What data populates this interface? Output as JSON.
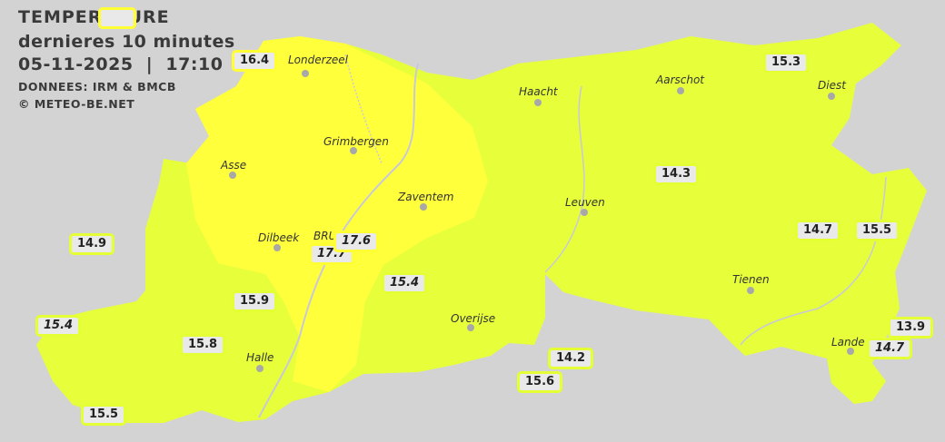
{
  "header": {
    "title": "TEMPERATURE",
    "subtitle": "dernieres 10 minutes",
    "datetime": "05-11-2025  |  17:10",
    "source": "DONNEES: IRM & BMCB",
    "copyright": "© METEO-BE.NET"
  },
  "colors": {
    "background": "#d3d3d3",
    "warm_zone": "#ffff3c",
    "mild_zone": "#e6ff3a",
    "badge_bg": "#e9e9e9"
  },
  "cities": [
    {
      "name": "Londerzeel"
    },
    {
      "name": "Haacht"
    },
    {
      "name": "Aarschot"
    },
    {
      "name": "Diest"
    },
    {
      "name": "Grimbergen"
    },
    {
      "name": "Asse"
    },
    {
      "name": "Zaventem"
    },
    {
      "name": "Leuven"
    },
    {
      "name": "Dilbeek"
    },
    {
      "name": "BRU"
    },
    {
      "name": "Tienen"
    },
    {
      "name": "Overijse"
    },
    {
      "name": "Halle"
    },
    {
      "name": "Lande"
    }
  ],
  "stations": [
    {
      "value": "16.4"
    },
    {
      "value": "15.3"
    },
    {
      "value": "14.3"
    },
    {
      "value": "14.9"
    },
    {
      "value": "17.7"
    },
    {
      "value": "17.6"
    },
    {
      "value": "15.4"
    },
    {
      "value": "14.7"
    },
    {
      "value": "15.5"
    },
    {
      "value": "15.9"
    },
    {
      "value": "15.4"
    },
    {
      "value": "15.8"
    },
    {
      "value": "14.2"
    },
    {
      "value": "15.6"
    },
    {
      "value": "13.9"
    },
    {
      "value": "14.7"
    },
    {
      "value": "15.5"
    }
  ]
}
